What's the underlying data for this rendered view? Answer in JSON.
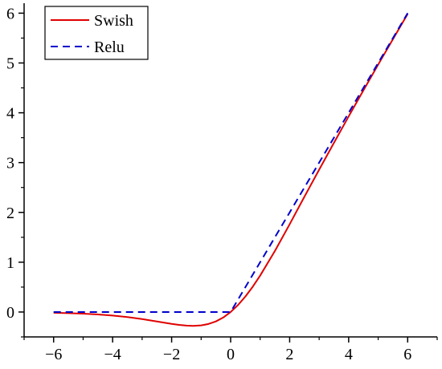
{
  "chart_data": {
    "type": "line",
    "title": "",
    "xlabel": "",
    "ylabel": "",
    "xlim": [
      -7,
      7
    ],
    "ylim": [
      -0.5,
      6.2
    ],
    "x_ticks": [
      -6,
      -4,
      -2,
      0,
      2,
      4,
      6
    ],
    "x_tick_labels": [
      "−6",
      "−4",
      "−2",
      "0",
      "2",
      "4",
      "6"
    ],
    "y_ticks": [
      0,
      1,
      2,
      3,
      4,
      5,
      6
    ],
    "y_tick_labels": [
      "0",
      "1",
      "2",
      "3",
      "4",
      "5",
      "6"
    ],
    "grid": false,
    "legend_position": "top-left",
    "series": [
      {
        "name": "Swish",
        "color": "#e00000",
        "style": "solid",
        "x": [
          -6,
          -5.5,
          -5,
          -4.5,
          -4,
          -3.5,
          -3,
          -2.5,
          -2,
          -1.75,
          -1.5,
          -1.278,
          -1,
          -0.75,
          -0.5,
          -0.25,
          0,
          0.25,
          0.5,
          0.75,
          1,
          1.5,
          2,
          2.5,
          3,
          3.5,
          4,
          4.5,
          5,
          5.5,
          6
        ],
        "y": [
          -0.015,
          -0.022,
          -0.033,
          -0.049,
          -0.072,
          -0.101,
          -0.142,
          -0.19,
          -0.238,
          -0.258,
          -0.273,
          -0.278,
          -0.269,
          -0.24,
          -0.189,
          -0.11,
          0,
          0.14,
          0.311,
          0.509,
          0.731,
          1.226,
          1.762,
          2.315,
          2.858,
          3.396,
          3.928,
          4.45,
          4.967,
          5.477,
          5.985
        ]
      },
      {
        "name": "Relu",
        "color": "#0000cc",
        "style": "dashed",
        "x": [
          -6,
          0,
          6
        ],
        "y": [
          0,
          0,
          6
        ]
      }
    ]
  }
}
